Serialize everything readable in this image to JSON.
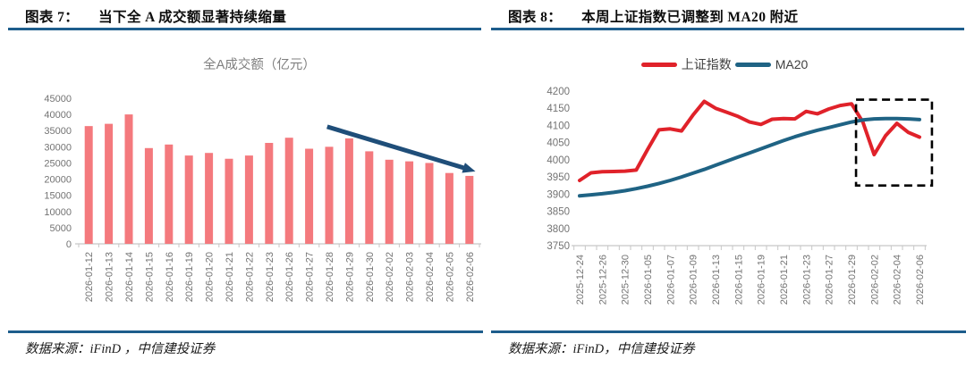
{
  "page": {
    "background": "#FFFFFF"
  },
  "figures": [
    {
      "header": {
        "label": "图表 7：",
        "title": "当下全 A 成交额显著持续缩量"
      },
      "source": "数据来源：iFinD ，中信建投证券"
    },
    {
      "header": {
        "label": "图表 8：",
        "title": "本周上证指数已调整到 MA20 附近"
      },
      "source": "数据来源：iFinD，中信建投证券"
    }
  ],
  "chart_data": [
    {
      "type": "bar",
      "title": "全A成交额（亿元）",
      "categories": [
        "2026-01-12",
        "2026-01-13",
        "2026-01-14",
        "2026-01-15",
        "2026-01-16",
        "2026-01-19",
        "2026-01-20",
        "2026-01-21",
        "2026-01-22",
        "2026-01-23",
        "2026-01-26",
        "2026-01-27",
        "2026-01-28",
        "2026-01-29",
        "2026-01-30",
        "2026-02-02",
        "2026-02-03",
        "2026-02-04",
        "2026-02-05",
        "2026-02-06"
      ],
      "values": [
        36400,
        37100,
        40000,
        29600,
        30700,
        27300,
        28100,
        26300,
        27300,
        31200,
        32800,
        29400,
        30000,
        32600,
        28600,
        26000,
        25500,
        25000,
        21900,
        21000
      ],
      "xlabel": "",
      "ylabel": "",
      "ylim": [
        0,
        45000
      ],
      "ytick_step": 5000,
      "grid": false,
      "bar_color": "#F4797D",
      "annotation_arrow": {
        "from_index": 11.9,
        "from_value": 36200,
        "to_index": 19.3,
        "to_value": 22400,
        "color": "#1F4E79"
      }
    },
    {
      "type": "line",
      "x": [
        "2025-12-24",
        "2025-12-25",
        "2025-12-26",
        "2025-12-29",
        "2025-12-30",
        "2025-12-31",
        "2026-01-05",
        "2026-01-06",
        "2026-01-07",
        "2026-01-08",
        "2026-01-09",
        "2026-01-12",
        "2026-01-13",
        "2026-01-14",
        "2026-01-15",
        "2026-01-16",
        "2026-01-19",
        "2026-01-20",
        "2026-01-21",
        "2026-01-22",
        "2026-01-23",
        "2026-01-26",
        "2026-01-27",
        "2026-01-28",
        "2026-01-29",
        "2026-01-30",
        "2026-02-02",
        "2026-02-03",
        "2026-02-04",
        "2026-02-05",
        "2026-02-06"
      ],
      "label_every": 2,
      "series": [
        {
          "name": "上证指数",
          "color": "#E0222A",
          "values": [
            3940,
            3962,
            3965,
            3966,
            3967,
            3970,
            4030,
            4087,
            4090,
            4084,
            4130,
            4170,
            4150,
            4138,
            4126,
            4110,
            4103,
            4118,
            4120,
            4119,
            4141,
            4134,
            4148,
            4158,
            4163,
            4110,
            4015,
            4070,
            4106,
            4080,
            4066
          ]
        },
        {
          "name": "MA20",
          "color": "#1F6384",
          "values": [
            3895,
            3898,
            3901,
            3905,
            3910,
            3916,
            3923,
            3931,
            3940,
            3950,
            3961,
            3972,
            3984,
            3996,
            4008,
            4020,
            4032,
            4044,
            4056,
            4067,
            4077,
            4086,
            4094,
            4102,
            4110,
            4116,
            4119,
            4120,
            4120,
            4119,
            4117
          ]
        }
      ],
      "ylim": [
        3750,
        4200
      ],
      "ytick_step": 50,
      "grid": false,
      "legend_position": "top",
      "highlight_box": {
        "from_index": 24.4,
        "to_index": 31.1,
        "y_min": 3925,
        "y_max": 4175,
        "color": "#000000"
      }
    }
  ],
  "colors": {
    "header_rule": "#1d5d8c",
    "axis_text": "#737373",
    "axis_line": "#C6C6C6",
    "chart_title": "#7f7f7f",
    "bar": "#F4797D",
    "sse_line": "#E0222A",
    "ma20_line": "#1F6384",
    "arrow": "#1F4E79",
    "dashed_box": "#000000"
  }
}
